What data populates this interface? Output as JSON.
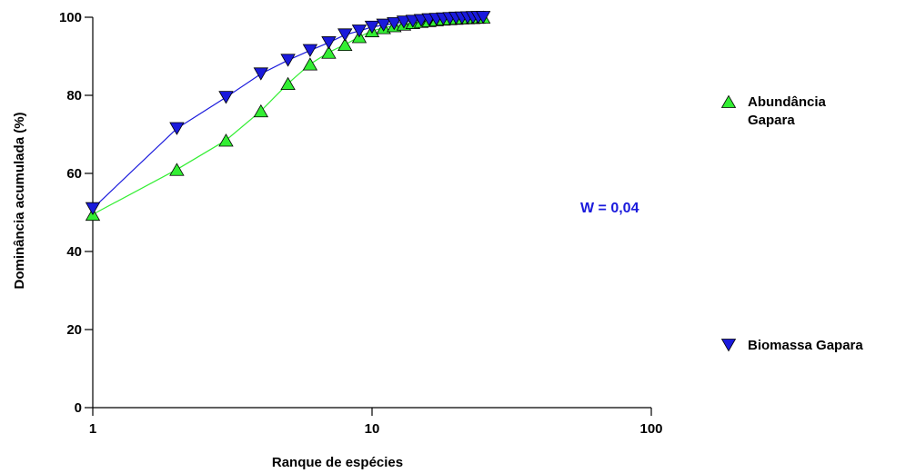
{
  "chart_data": {
    "type": "line",
    "xlabel": "Ranque de espécies",
    "ylabel": "Dominância acumulada (%)",
    "xscale": "log",
    "xlim": [
      1,
      100
    ],
    "ylim": [
      0,
      100
    ],
    "xticks": [
      1,
      10,
      100
    ],
    "yticks": [
      0,
      20,
      40,
      60,
      80,
      100
    ],
    "grid": false,
    "legend_position": "right",
    "annotation": "W = 0,04",
    "annotation_color": "#1a1adc",
    "series": [
      {
        "name": "Abundância Gapara",
        "legend_lines": [
          "Abundância",
          "Gapara"
        ],
        "marker": "triangle-up",
        "color": "#33ee33",
        "line_color": "#33ee33",
        "x": [
          1,
          2,
          3,
          4,
          5,
          6,
          7,
          8,
          9,
          10,
          11,
          12,
          13,
          14,
          15,
          16,
          17,
          18,
          19,
          20,
          21,
          22,
          23,
          24,
          25
        ],
        "y": [
          49.5,
          61,
          68.5,
          76,
          83,
          88,
          91,
          93,
          95,
          96.5,
          97.3,
          97.8,
          98.2,
          98.6,
          98.9,
          99.1,
          99.3,
          99.5,
          99.6,
          99.7,
          99.8,
          99.85,
          99.9,
          99.95,
          100
        ]
      },
      {
        "name": "Biomassa Gapara",
        "legend_lines": [
          "Biomassa Gapara"
        ],
        "marker": "triangle-down",
        "color": "#1a1adc",
        "line_color": "#1a1adc",
        "x": [
          1,
          2,
          3,
          4,
          5,
          6,
          7,
          8,
          9,
          10,
          11,
          12,
          13,
          14,
          15,
          16,
          17,
          18,
          19,
          20,
          21,
          22,
          23,
          24,
          25
        ],
        "y": [
          51,
          71.5,
          79.5,
          85.5,
          89,
          91.5,
          93.5,
          95.5,
          96.5,
          97.5,
          98,
          98.4,
          98.8,
          99,
          99.2,
          99.4,
          99.5,
          99.6,
          99.7,
          99.8,
          99.85,
          99.9,
          99.95,
          99.97,
          100
        ]
      }
    ]
  }
}
